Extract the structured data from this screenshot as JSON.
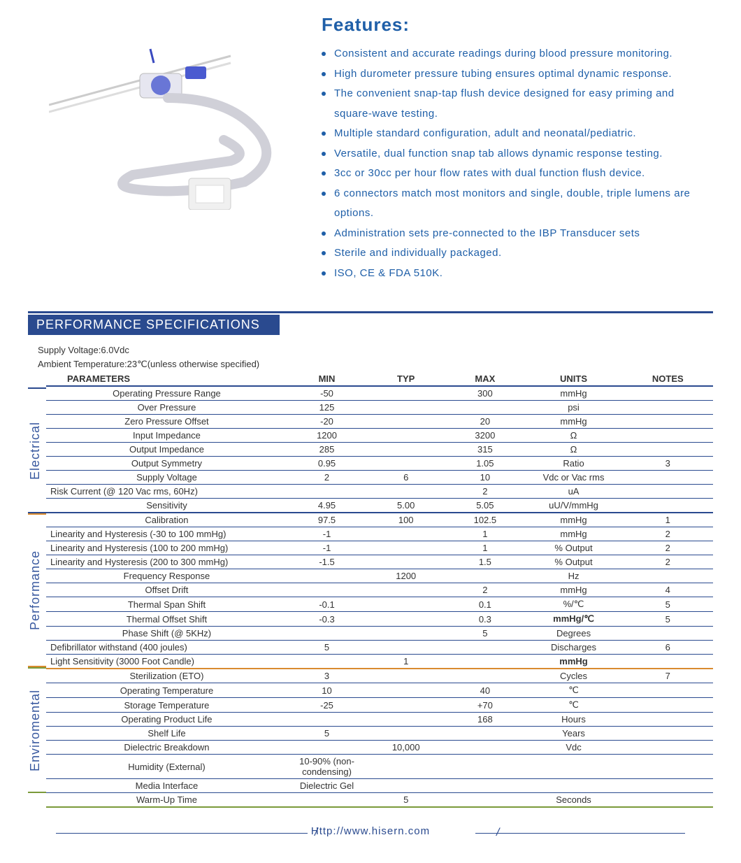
{
  "colors": {
    "brand_blue": "#1f5fa8",
    "header_blue": "#2a4a8f",
    "perf_orange": "#d98b2f",
    "env_green": "#7a9a3a",
    "text": "#333333",
    "bg": "#ffffff"
  },
  "features": {
    "title": "Features:",
    "items": [
      "Consistent and accurate readings during blood pressure monitoring.",
      "High durometer pressure tubing ensures optimal dynamic response.",
      "The convenient snap-tap flush device designed for easy priming and square-wave testing.",
      "Multiple standard configuration, adult and neonatal/pediatric.",
      "Versatile, dual function snap tab allows dynamic response testing.",
      "3cc or 30cc per hour flow rates with dual function flush device.",
      "6 connectors match most monitors and single, double, triple lumens are options.",
      "Administration sets pre-connected to the IBP Transducer sets",
      "Sterile and individually packaged.",
      "ISO, CE & FDA 510K."
    ]
  },
  "spec": {
    "header": "PERFORMANCE SPECIFICATIONS",
    "meta1": "Supply Voltage:6.0Vdc",
    "meta2": "Ambient Temperature:23℃(unless otherwise specified)",
    "columns": [
      "PARAMETERS",
      "MIN",
      "TYP",
      "MAX",
      "UNITS",
      "NOTES"
    ],
    "sections": [
      {
        "label": "Electrical",
        "color": "#2a4a8f",
        "rows": [
          {
            "p": "Operating Pressure Range",
            "min": "-50",
            "typ": "",
            "max": "300",
            "u": "mmHg",
            "n": ""
          },
          {
            "p": "Over  Pressure",
            "min": "125",
            "typ": "",
            "max": "",
            "u": "psi",
            "n": ""
          },
          {
            "p": "Zero Pressure Offset",
            "min": "-20",
            "typ": "",
            "max": "20",
            "u": "mmHg",
            "n": ""
          },
          {
            "p": "Input Impedance",
            "min": "1200",
            "typ": "",
            "max": "3200",
            "u": "Ω",
            "n": ""
          },
          {
            "p": "Output Impedance",
            "min": "285",
            "typ": "",
            "max": "315",
            "u": "Ω",
            "n": ""
          },
          {
            "p": "Output Symmetry",
            "min": "0.95",
            "typ": "",
            "max": "1.05",
            "u": "Ratio",
            "n": "3"
          },
          {
            "p": "Supply Voltage",
            "min": "2",
            "typ": "6",
            "max": "10",
            "u": "Vdc or Vac rms",
            "n": ""
          },
          {
            "p": "Risk Current (@ 120 Vac rms, 60Hz)",
            "min": "",
            "typ": "",
            "max": "2",
            "u": "uA",
            "n": "",
            "left": true
          },
          {
            "p": "Sensitivity",
            "min": "4.95",
            "typ": "5.00",
            "max": "5.05",
            "u": "uU/V/mmHg",
            "n": ""
          }
        ]
      },
      {
        "label": "Performance",
        "color": "#d98b2f",
        "rows": [
          {
            "p": "Calibration",
            "min": "97.5",
            "typ": "100",
            "max": "102.5",
            "u": "mmHg",
            "n": "1"
          },
          {
            "p": "Linearity and Hysteresis (-30 to 100 mmHg)",
            "min": "-1",
            "typ": "",
            "max": "1",
            "u": "mmHg",
            "n": "2",
            "left": true
          },
          {
            "p": "Linearity and Hysteresis (100 to 200 mmHg)",
            "min": "-1",
            "typ": "",
            "max": "1",
            "u": "% Output",
            "n": "2",
            "left": true
          },
          {
            "p": "Linearity and Hysteresis (200 to 300 mmHg)",
            "min": "-1.5",
            "typ": "",
            "max": "1.5",
            "u": "% Output",
            "n": "2",
            "left": true
          },
          {
            "p": "Frequency Response",
            "min": "",
            "typ": "1200",
            "max": "",
            "u": "Hz",
            "n": ""
          },
          {
            "p": "Offset Drift",
            "min": "",
            "typ": "",
            "max": "2",
            "u": "mmHg",
            "n": "4"
          },
          {
            "p": "Thermal Span Shift",
            "min": "-0.1",
            "typ": "",
            "max": "0.1",
            "u": "%/℃",
            "n": "5"
          },
          {
            "p": "Thermal Offset Shift",
            "min": "-0.3",
            "typ": "",
            "max": "0.3",
            "u": "mmHg/℃",
            "n": "5",
            "ubold": true
          },
          {
            "p": "Phase Shift (@ 5KHz)",
            "min": "",
            "typ": "",
            "max": "5",
            "u": "Degrees",
            "n": ""
          },
          {
            "p": "Defibrillator withstand (400 joules)",
            "min": "5",
            "typ": "",
            "max": "",
            "u": "Discharges",
            "n": "6",
            "left": true
          },
          {
            "p": "Light Sensitivity (3000 Foot Candle)",
            "min": "",
            "typ": "1",
            "max": "",
            "u": "mmHg",
            "n": "",
            "left": true,
            "ubold": true
          }
        ]
      },
      {
        "label": "Enviromental",
        "color": "#7a9a3a",
        "rows": [
          {
            "p": "Sterilization (ETO)",
            "min": "3",
            "typ": "",
            "max": "",
            "u": "Cycles",
            "n": "7"
          },
          {
            "p": "Operating Temperature",
            "min": "10",
            "typ": "",
            "max": "40",
            "u": "℃",
            "n": ""
          },
          {
            "p": "Storage Temperature",
            "min": "-25",
            "typ": "",
            "max": "+70",
            "u": "℃",
            "n": ""
          },
          {
            "p": "Operating Product Life",
            "min": "",
            "typ": "",
            "max": "168",
            "u": "Hours",
            "n": ""
          },
          {
            "p": "Shelf Life",
            "min": "5",
            "typ": "",
            "max": "",
            "u": "Years",
            "n": ""
          },
          {
            "p": "Dielectric Breakdown",
            "min": "",
            "typ": "10,000",
            "max": "",
            "u": "Vdc",
            "n": ""
          },
          {
            "p": "Humidity (External)",
            "min": "10-90% (non-condensing)",
            "typ": "",
            "max": "",
            "u": "",
            "n": ""
          },
          {
            "p": "Media Interface",
            "min": "Dielectric Gel",
            "typ": "",
            "max": "",
            "u": "",
            "n": ""
          },
          {
            "p": "Warm-Up Time",
            "min": "",
            "typ": "5",
            "max": "",
            "u": "Seconds",
            "n": ""
          }
        ]
      }
    ]
  },
  "footer": {
    "url": "Http://www.hisern.com"
  }
}
